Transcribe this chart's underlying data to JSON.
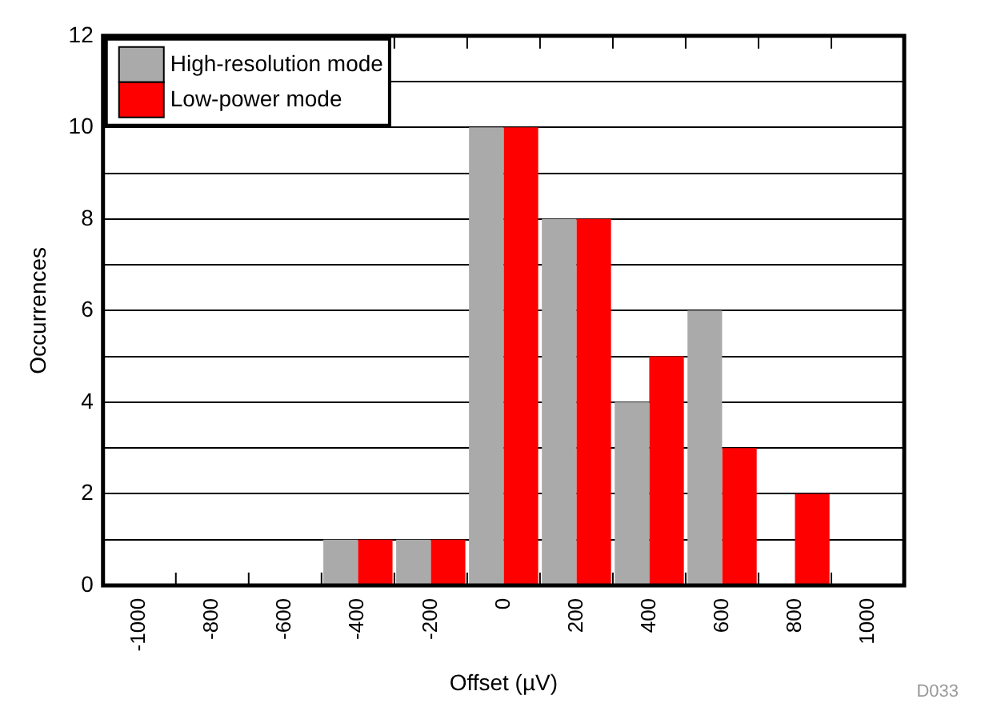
{
  "chart_data": {
    "type": "bar",
    "xlabel": "Offset (µV)",
    "ylabel": "Occurrences",
    "categories": [
      "-1000",
      "-800",
      "-600",
      "-400",
      "-200",
      "0",
      "200",
      "400",
      "600",
      "800",
      "1000"
    ],
    "series": [
      {
        "name": "High-resolution mode",
        "color": "#aaaaaa",
        "values": [
          0,
          0,
          0,
          1,
          1,
          10,
          8,
          4,
          6,
          0,
          0
        ]
      },
      {
        "name": "Low-power mode",
        "color": "#ff0000",
        "values": [
          0,
          0,
          0,
          1,
          1,
          10,
          8,
          5,
          3,
          2,
          0
        ]
      }
    ],
    "ylim": [
      0,
      12
    ],
    "yticks": [
      0,
      {
        "value": 1,
        "label": null
      },
      2,
      {
        "value": 3,
        "label": null
      },
      4,
      {
        "value": 5,
        "label": null
      },
      6,
      {
        "value": 7,
        "label": null
      },
      8,
      {
        "value": 9,
        "label": null
      },
      10,
      {
        "value": 11,
        "label": null
      },
      12
    ],
    "grid": "y",
    "legend": "top left",
    "annotations": [
      "D033"
    ]
  }
}
